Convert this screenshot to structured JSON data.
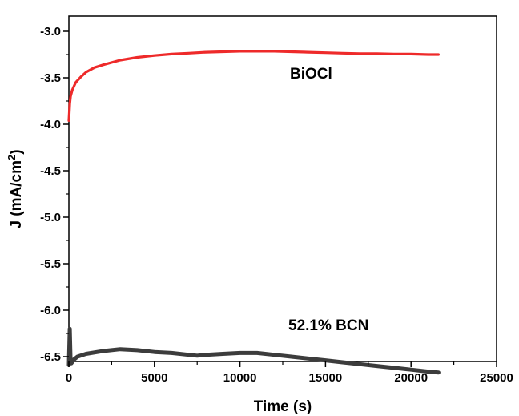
{
  "chart_data": {
    "type": "line",
    "title": "",
    "xlabel": "Time (s)",
    "ylabel_prefix": "J (mA/cm",
    "ylabel_sup": "2",
    "ylabel_suffix": ")",
    "xlim": [
      0,
      25000
    ],
    "ylim": [
      -6.75,
      -3.0
    ],
    "x_ticks": [
      0,
      5000,
      10000,
      15000,
      20000,
      25000
    ],
    "x_tick_labels": [
      "0",
      "5000",
      "10000",
      "15000",
      "20000",
      "25000"
    ],
    "y_ticks": [
      -3.0,
      -3.5,
      -4.0,
      -4.5,
      -5.0,
      -5.5,
      -6.0,
      -6.5
    ],
    "y_tick_labels": [
      "-3.0",
      "-3.5",
      "-4.0",
      "-4.5",
      "-5.0",
      "-5.5",
      "-6.0",
      "-6.5"
    ],
    "grid": false,
    "series": [
      {
        "name": "BiOCl",
        "color": "#ee2a2a",
        "x": [
          0,
          50,
          100,
          200,
          400,
          700,
          1000,
          1500,
          2000,
          3000,
          4000,
          5000,
          6000,
          7000,
          8000,
          9000,
          10000,
          11000,
          12000,
          13000,
          14000,
          15000,
          16000,
          17000,
          18000,
          19000,
          20000,
          21000,
          21600
        ],
        "y": [
          -3.96,
          -3.78,
          -3.7,
          -3.63,
          -3.55,
          -3.49,
          -3.44,
          -3.39,
          -3.36,
          -3.31,
          -3.28,
          -3.26,
          -3.245,
          -3.235,
          -3.225,
          -3.22,
          -3.215,
          -3.215,
          -3.215,
          -3.22,
          -3.225,
          -3.23,
          -3.235,
          -3.24,
          -3.24,
          -3.245,
          -3.245,
          -3.25,
          -3.25
        ]
      },
      {
        "name": "52.1% BCN",
        "color": "#3c3c3c",
        "x": [
          0,
          50,
          100,
          150,
          300,
          500,
          1000,
          2000,
          3000,
          4000,
          5000,
          6000,
          7000,
          7500,
          8000,
          9000,
          10000,
          11000,
          12000,
          13000,
          14000,
          15000,
          16000,
          17000,
          18000,
          19000,
          20000,
          21000,
          21600
        ],
        "y": [
          -6.59,
          -6.2,
          -6.55,
          -6.57,
          -6.53,
          -6.5,
          -6.47,
          -6.44,
          -6.42,
          -6.43,
          -6.45,
          -6.46,
          -6.48,
          -6.49,
          -6.48,
          -6.47,
          -6.46,
          -6.46,
          -6.48,
          -6.5,
          -6.52,
          -6.54,
          -6.56,
          -6.58,
          -6.6,
          -6.62,
          -6.64,
          -6.66,
          -6.67
        ]
      }
    ]
  }
}
